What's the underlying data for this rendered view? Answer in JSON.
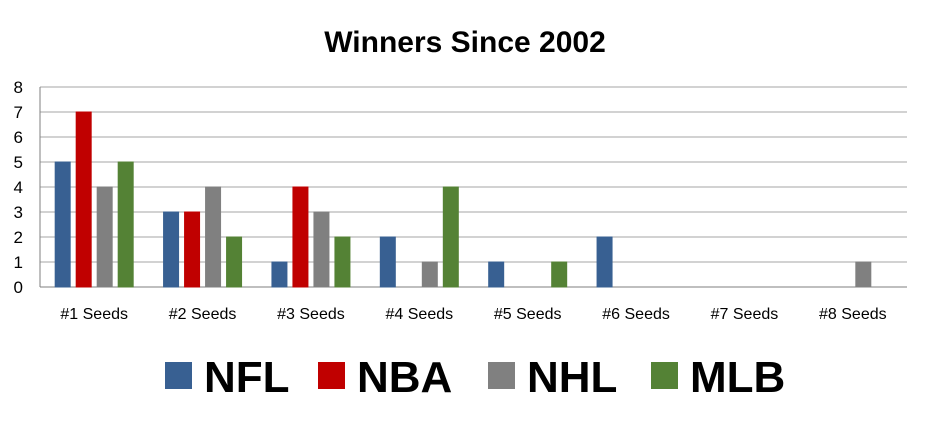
{
  "chart_data": {
    "type": "bar",
    "title": "Winners Since 2002",
    "categories": [
      "#1 Seeds",
      "#2 Seeds",
      "#3 Seeds",
      "#4 Seeds",
      "#5 Seeds",
      "#6 Seeds",
      "#7 Seeds",
      "#8 Seeds"
    ],
    "series": [
      {
        "name": "NFL",
        "color": "#386092",
        "values": [
          5,
          3,
          1,
          2,
          1,
          2,
          0,
          0
        ]
      },
      {
        "name": "NBA",
        "color": "#c00000",
        "values": [
          7,
          3,
          4,
          0,
          0,
          0,
          0,
          0
        ]
      },
      {
        "name": "NHL",
        "color": "#808080",
        "values": [
          4,
          4,
          3,
          1,
          0,
          0,
          0,
          1
        ]
      },
      {
        "name": "MLB",
        "color": "#548235",
        "values": [
          5,
          2,
          2,
          4,
          1,
          0,
          0,
          0
        ]
      }
    ],
    "ylim": [
      0,
      8
    ],
    "yticks": [
      "0",
      "1",
      "2",
      "3",
      "4",
      "5",
      "6",
      "7",
      "8"
    ],
    "grid": true,
    "legend_position": "bottom"
  }
}
